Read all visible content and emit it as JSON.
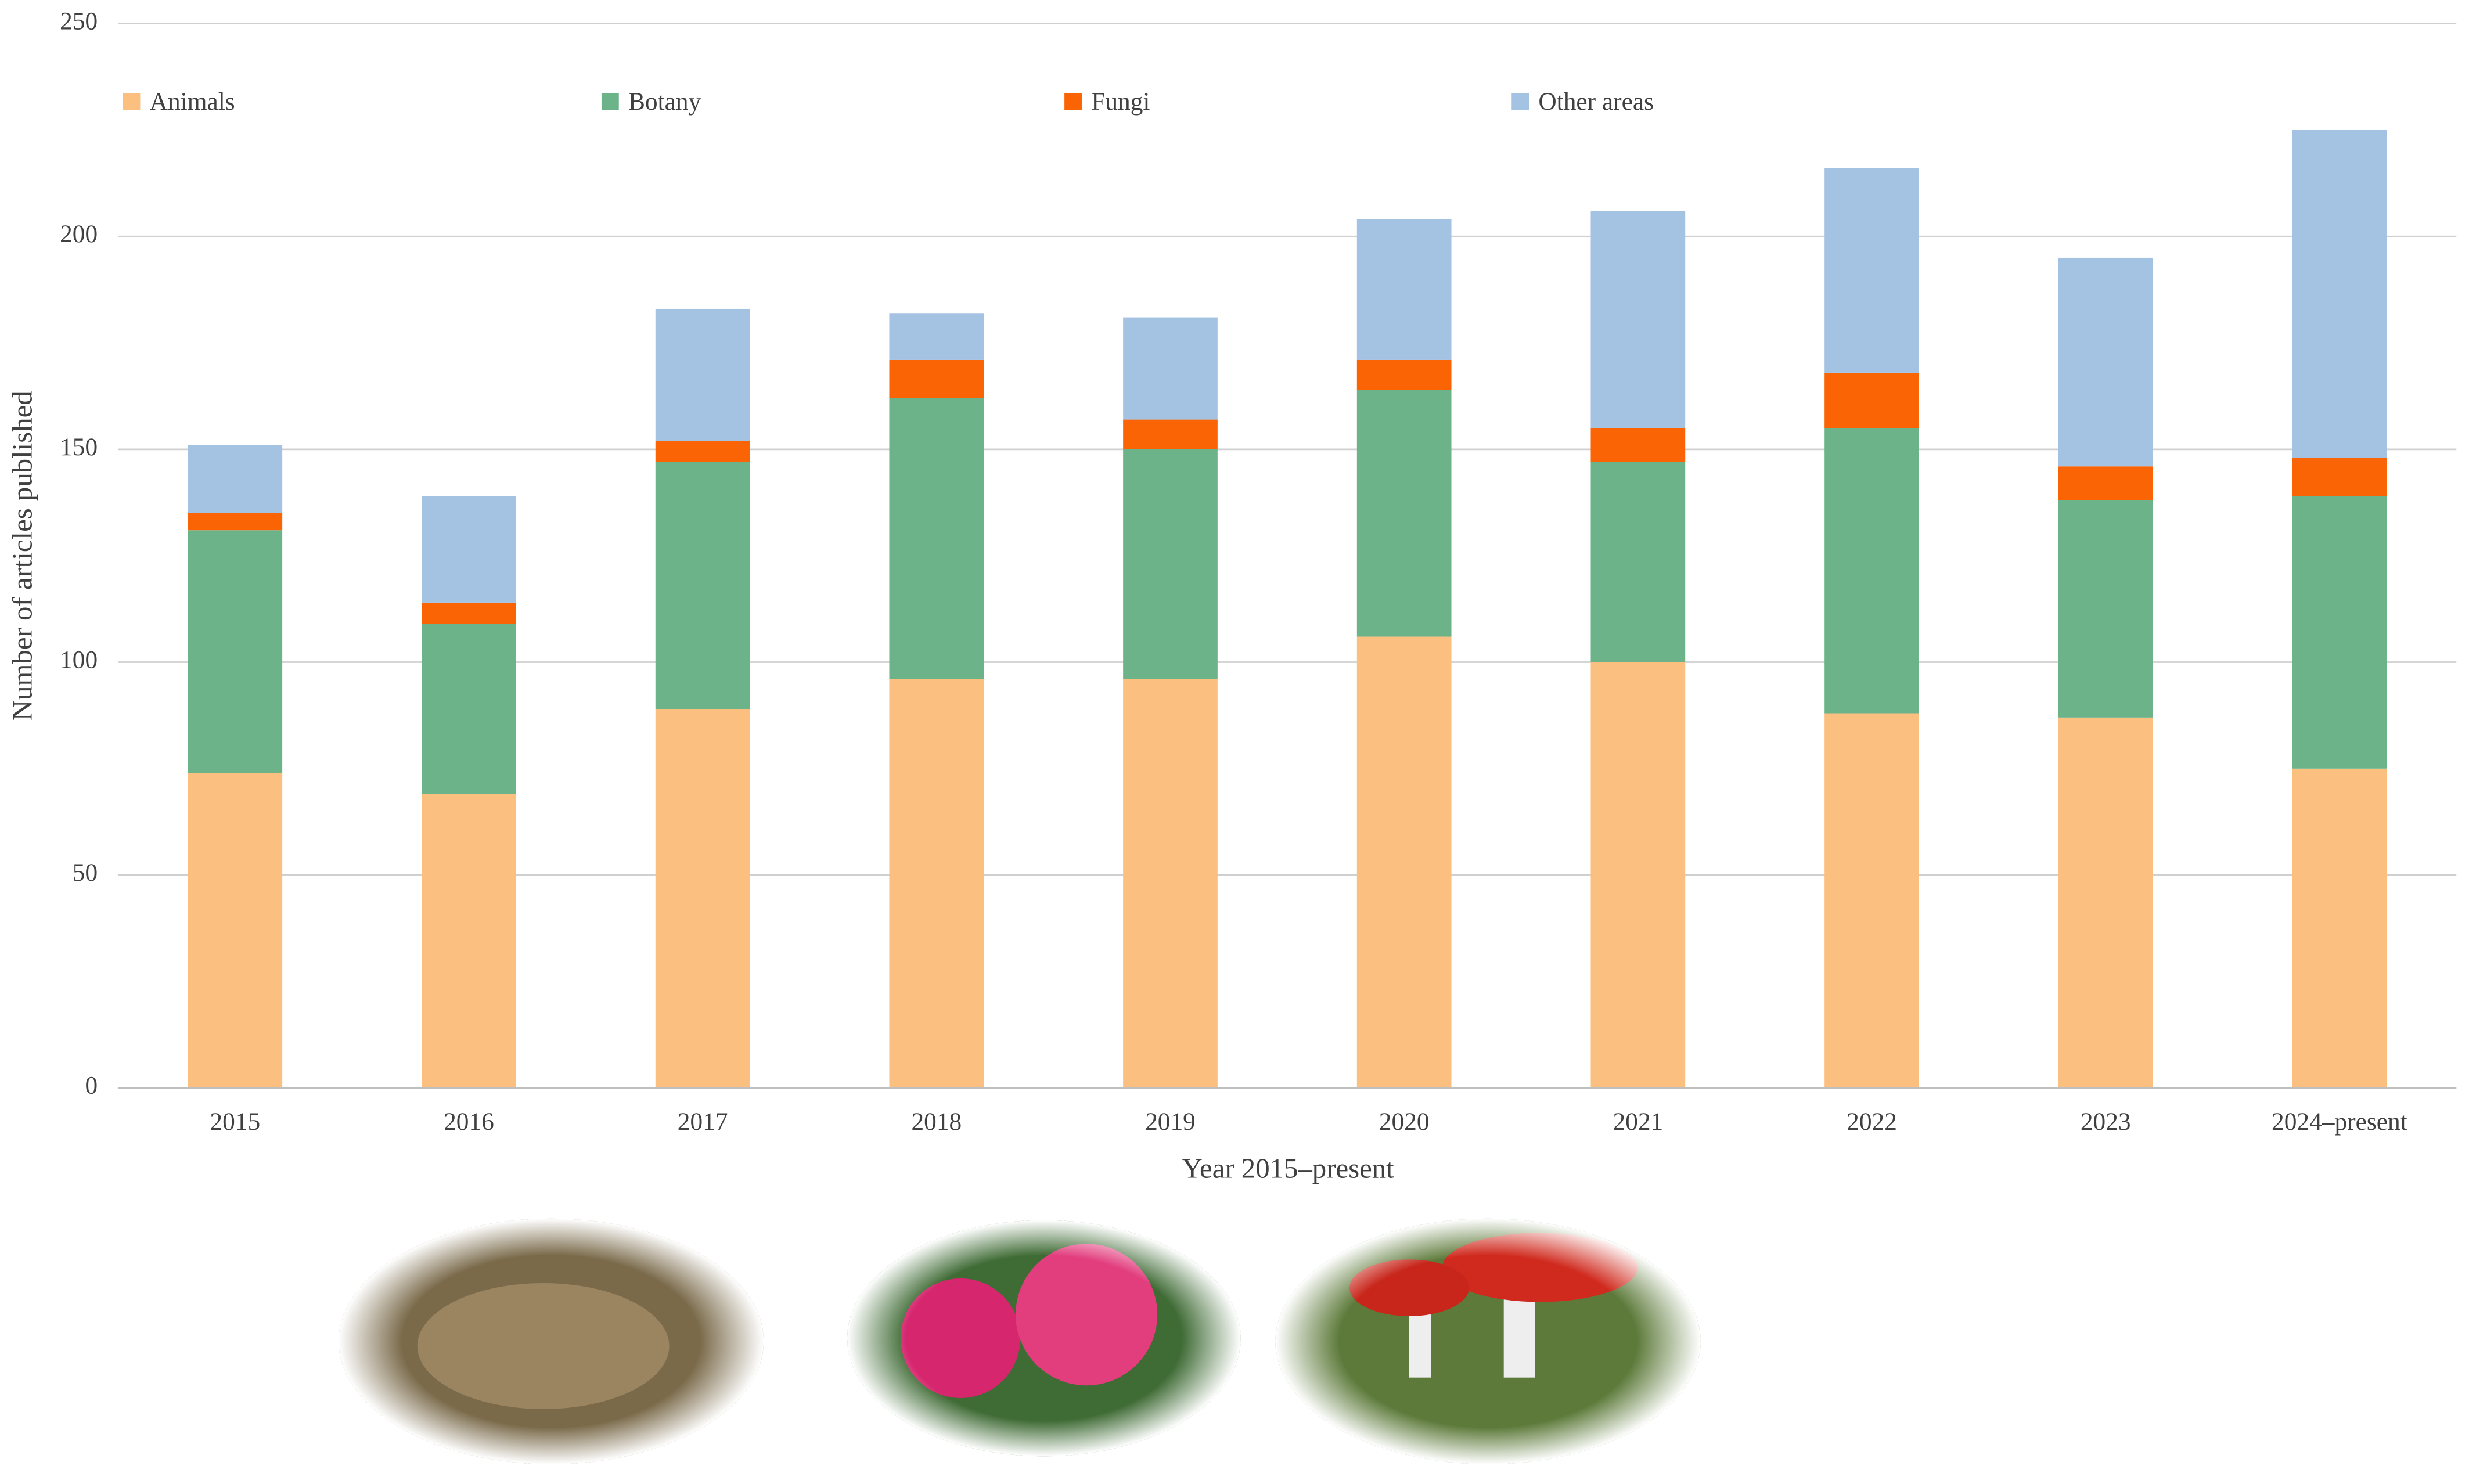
{
  "chart_data": {
    "type": "stacked_bar",
    "xlabel": "Year 2015–present",
    "ylabel": "Number of articles published",
    "categories": [
      "2015",
      "2016",
      "2017",
      "2018",
      "2019",
      "2020",
      "2021",
      "2022",
      "2023",
      "2024–present"
    ],
    "series": [
      {
        "name": "Animals",
        "color": "#fbbf80",
        "values": [
          74,
          69,
          89,
          96,
          96,
          106,
          100,
          88,
          87,
          75
        ]
      },
      {
        "name": "Botany",
        "color": "#6db38a",
        "values": [
          57,
          40,
          58,
          66,
          54,
          58,
          47,
          67,
          51,
          64
        ]
      },
      {
        "name": "Fungi",
        "color": "#fa6405",
        "values": [
          4,
          5,
          5,
          9,
          7,
          7,
          8,
          13,
          8,
          9
        ]
      },
      {
        "name": "Other areas",
        "color": "#a4c2e2",
        "values": [
          16,
          25,
          31,
          11,
          24,
          33,
          51,
          48,
          49,
          77
        ]
      }
    ],
    "ylim": [
      0,
      250
    ],
    "yticks": [
      0,
      50,
      100,
      150,
      200,
      250
    ],
    "grid": true,
    "legend": "top"
  }
}
